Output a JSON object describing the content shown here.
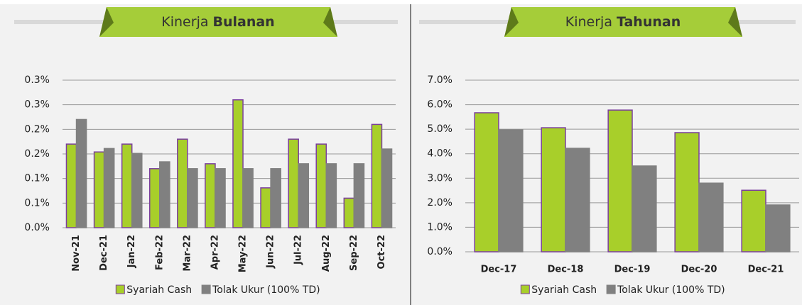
{
  "chart_data": [
    {
      "type": "bar",
      "title": [
        "Kinerja",
        "Bulanan"
      ],
      "categories": [
        "Nov-21",
        "Dec-21",
        "Jan-22",
        "Feb-22",
        "Mar-22",
        "Apr-22",
        "May-22",
        "Jun-22",
        "Jul-22",
        "Aug-22",
        "Sep-22",
        "Oct-22"
      ],
      "series": [
        {
          "name": "Syariah Cash",
          "color": "#a8cf2a",
          "values": [
            0.17,
            0.154,
            0.17,
            0.12,
            0.18,
            0.13,
            0.26,
            0.081,
            0.18,
            0.17,
            0.06,
            0.21
          ]
        },
        {
          "name": "Tolak Ukur (100% TD)",
          "color": "#808080",
          "values": [
            0.22,
            0.161,
            0.151,
            0.134,
            0.12,
            0.12,
            0.12,
            0.12,
            0.13,
            0.13,
            0.13,
            0.16
          ]
        }
      ],
      "ylim": [
        0,
        0.3
      ],
      "yticks": [
        {
          "value": 0,
          "label": "0.0%"
        },
        {
          "value": 0.05,
          "label": "0.1%"
        },
        {
          "value": 0.1,
          "label": "0.1%"
        },
        {
          "value": 0.15,
          "label": "0.2%"
        },
        {
          "value": 0.2,
          "label": "0.2%"
        },
        {
          "value": 0.25,
          "label": "0.3%"
        },
        {
          "value": 0.3,
          "label": "0.3%"
        }
      ],
      "grid": true,
      "legend": "bottom"
    },
    {
      "type": "bar",
      "title": [
        "Kinerja",
        "Tahunan"
      ],
      "categories": [
        "Dec-17",
        "Dec-18",
        "Dec-19",
        "Dec-20",
        "Dec-21"
      ],
      "series": [
        {
          "name": "Syariah Cash",
          "color": "#a8cf2a",
          "values": [
            5.67,
            5.06,
            5.78,
            4.86,
            2.51
          ]
        },
        {
          "name": "Tolak Ukur (100% TD)",
          "color": "#808080",
          "values": [
            4.97,
            4.22,
            3.5,
            2.8,
            1.91
          ]
        }
      ],
      "ylim": [
        0,
        7
      ],
      "yticks": [
        {
          "value": 0,
          "label": "0.0%"
        },
        {
          "value": 1,
          "label": "1.0%"
        },
        {
          "value": 2,
          "label": "2.0%"
        },
        {
          "value": 3,
          "label": "3.0%"
        },
        {
          "value": 4,
          "label": "4.0%"
        },
        {
          "value": 5,
          "label": "5.0%"
        },
        {
          "value": 6,
          "label": "6.0%"
        },
        {
          "value": 7,
          "label": "7.0%"
        }
      ],
      "grid": true,
      "legend": "bottom"
    }
  ]
}
